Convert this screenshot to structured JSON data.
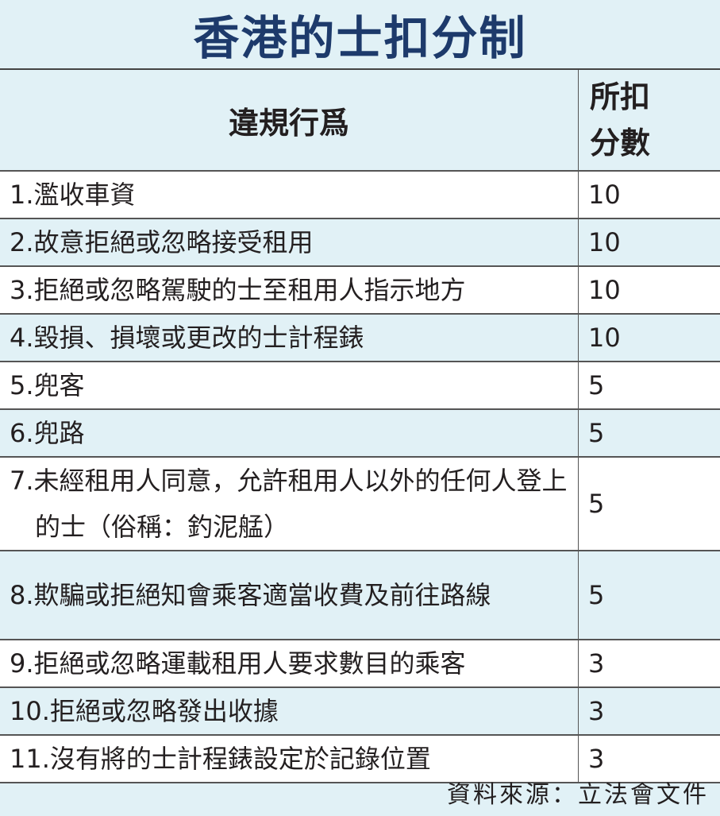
{
  "title": "香港的士扣分制",
  "table": {
    "headers": [
      "違規行爲",
      "所扣分數"
    ],
    "rows": [
      {
        "offence": "1.濫收車資",
        "points": "10"
      },
      {
        "offence": "2.故意拒絕或忽略接受租用",
        "points": "10"
      },
      {
        "offence": "3.拒絕或忽略駕駛的士至租用人指示地方",
        "points": "10"
      },
      {
        "offence": "4.毀損、損壞或更改的士計程錶",
        "points": "10"
      },
      {
        "offence": "5.兜客",
        "points": "5"
      },
      {
        "offence": "6.兜路",
        "points": "5"
      },
      {
        "offence": "7.未經租用人同意，允許租用人以外的任何人登上的士（俗稱：釣泥艋）",
        "points": "5"
      },
      {
        "offence": "8.欺騙或拒絕知會乘客適當收費及前往路線",
        "points": "5"
      },
      {
        "offence": "9.拒絕或忽略運載租用人要求數目的乘客",
        "points": "3"
      },
      {
        "offence": "10.拒絕或忽略發出收據",
        "points": "3"
      },
      {
        "offence": "11.沒有將的士計程錶設定於記錄位置",
        "points": "3"
      }
    ]
  },
  "source": "資料來源：立法會文件",
  "colors": {
    "title": "#1d3a6b",
    "background": "#e1f1f6",
    "alt_row": "#ffffff"
  }
}
